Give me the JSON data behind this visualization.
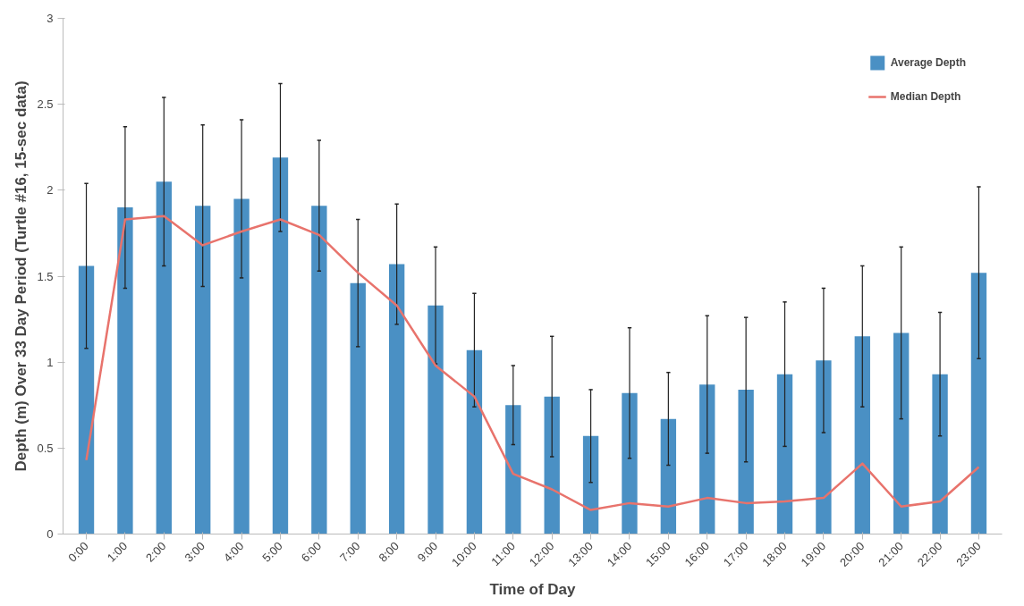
{
  "chart_data": {
    "type": "bar",
    "xlabel": "Time of Day",
    "ylabel": "Depth (m) Over 33 Day Period (Turtle #16, 15-sec data)",
    "categories": [
      "0:00",
      "1:00",
      "2:00",
      "3:00",
      "4:00",
      "5:00",
      "6:00",
      "7:00",
      "8:00",
      "9:00",
      "10:00",
      "11:00",
      "12:00",
      "13:00",
      "14:00",
      "15:00",
      "16:00",
      "17:00",
      "18:00",
      "19:00",
      "20:00",
      "21:00",
      "22:00",
      "23:00"
    ],
    "series": [
      {
        "name": "Average Depth",
        "color": "#4a90c4",
        "values": [
          1.56,
          1.9,
          2.05,
          1.91,
          1.95,
          2.19,
          1.91,
          1.46,
          1.57,
          1.33,
          1.07,
          0.75,
          0.8,
          0.57,
          0.82,
          0.67,
          0.87,
          0.84,
          0.93,
          1.01,
          1.15,
          1.17,
          0.93,
          1.52
        ],
        "errors": [
          0.48,
          0.47,
          0.49,
          0.47,
          0.46,
          0.43,
          0.38,
          0.37,
          0.35,
          0.34,
          0.33,
          0.23,
          0.35,
          0.27,
          0.38,
          0.27,
          0.4,
          0.42,
          0.42,
          0.42,
          0.41,
          0.5,
          0.36,
          0.5
        ]
      },
      {
        "name": "Median Depth",
        "type": "line",
        "color": "#e8736c",
        "values": [
          0.43,
          1.83,
          1.85,
          1.68,
          1.76,
          1.83,
          1.74,
          1.52,
          1.33,
          0.98,
          0.8,
          0.35,
          0.26,
          0.14,
          0.18,
          0.16,
          0.21,
          0.18,
          0.19,
          0.21,
          0.41,
          0.16,
          0.19,
          0.39
        ]
      }
    ],
    "ylim": [
      0,
      3
    ],
    "yticks": [
      0,
      0.5,
      1,
      1.5,
      2,
      2.5,
      3
    ],
    "grid": false,
    "legend": "top right"
  }
}
